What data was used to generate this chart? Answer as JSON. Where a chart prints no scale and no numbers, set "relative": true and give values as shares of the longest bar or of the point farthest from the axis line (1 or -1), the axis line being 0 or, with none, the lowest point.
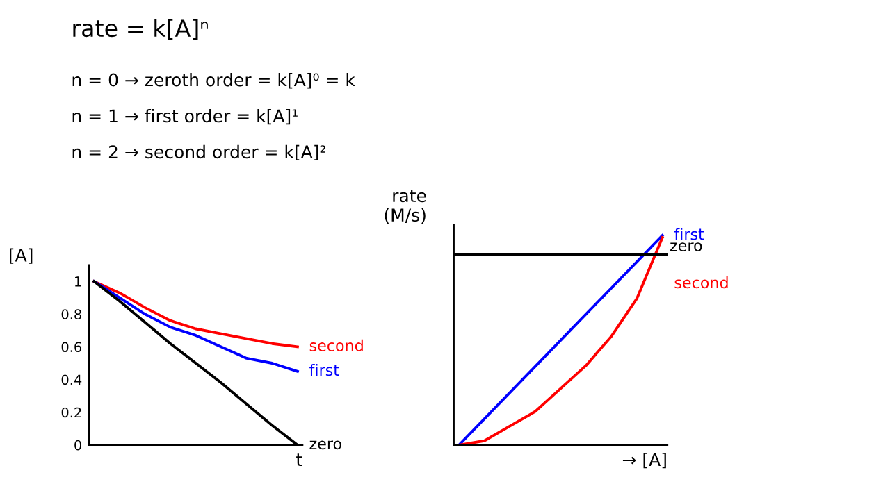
{
  "chart_data": [
    {
      "type": "other",
      "title": "rate = k[A]ⁿ",
      "annotations": [
        "n = 0 → zeroth order = k[A]⁰ = k",
        "n = 1 → first order = k[A]¹",
        "n = 2 → second order = k[A]²"
      ]
    },
    {
      "type": "line",
      "xlabel": "t",
      "ylabel": "[A]",
      "categories": [
        null,
        null,
        null,
        null,
        null,
        null,
        null,
        null,
        null
      ],
      "ylim": [
        0,
        1.1
      ],
      "yticks": [
        0,
        0.2,
        0.4,
        0.6,
        0.8,
        1
      ],
      "tick_labels": "y",
      "grid": false,
      "legend": false,
      "series": [
        {
          "name": "second",
          "color": "#ff0000",
          "values": [
            1,
            0.93,
            0.84,
            0.76,
            0.71,
            0.68,
            0.65,
            0.62,
            0.6
          ]
        },
        {
          "name": "first",
          "color": "#0000ff",
          "values": [
            1,
            0.9,
            0.8,
            0.72,
            0.67,
            0.6,
            0.53,
            0.5,
            0.45
          ]
        },
        {
          "name": "zero",
          "color": "#000000",
          "values": [
            1,
            0.88,
            0.75,
            0.62,
            0.5,
            0.38,
            0.25,
            0.12,
            0
          ]
        }
      ]
    },
    {
      "type": "line",
      "xlabel": "→ [A]",
      "ylabel": "rate\n(M/s)",
      "categories": [
        null,
        null,
        null,
        null,
        null,
        null,
        null,
        null,
        null
      ],
      "relative": true,
      "tick_labels": false,
      "grid": false,
      "legend": false,
      "ref_lines": [
        {
          "axis": "y",
          "value": 0.91,
          "label": "zero",
          "color": "#000000"
        }
      ],
      "series": [
        {
          "name": "first",
          "color": "#0000ff",
          "values": [
            0,
            0.125,
            0.25,
            0.375,
            0.5,
            0.625,
            0.75,
            0.875,
            1
          ]
        },
        {
          "name": "second",
          "color": "#ff0000",
          "values": [
            0,
            0.02,
            0.09,
            0.16,
            0.27,
            0.38,
            0.52,
            0.7,
            0.99
          ]
        }
      ]
    }
  ]
}
